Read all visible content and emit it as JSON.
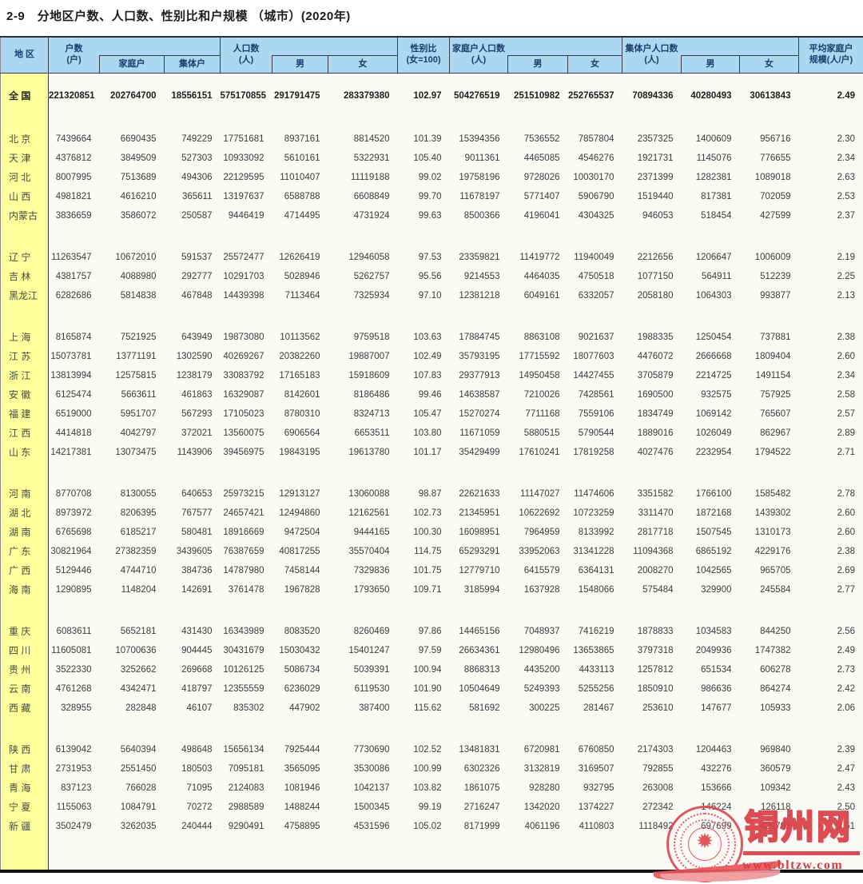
{
  "page_title": "2-9　分地区户数、人口数、性别比和户规模 （城市）(2020年)",
  "table": {
    "header": {
      "region": "地 区",
      "households": "户数\n(户)",
      "family_households": "家庭户",
      "collective_households": "集体户",
      "population": "人口数\n(人)",
      "male": "男",
      "female": "女",
      "sex_ratio": "性别比\n(女=100)",
      "family_hh_population": "家庭户人口数\n(人)",
      "collective_hh_population": "集体户人口数\n(人)",
      "avg_family_size": "平均家庭户\n规模(人/户)"
    },
    "value_columns": [
      "households",
      "family_households",
      "collective_households",
      "population",
      "population_male",
      "population_female",
      "sex_ratio",
      "family_hh_population",
      "family_hh_male",
      "family_hh_female",
      "collective_hh_population",
      "collective_hh_male",
      "collective_hh_female",
      "avg_family_size"
    ],
    "groups": [
      {
        "rows": [
          {
            "region": "全 国",
            "values": [
              "221320851",
              "202764700",
              "18556151",
              "575170855",
              "291791475",
              "283379380",
              "102.97",
              "504276519",
              "251510982",
              "252765537",
              "70894336",
              "40280493",
              "30613843",
              "2.49"
            ]
          }
        ]
      },
      {
        "rows": [
          {
            "region": "北 京",
            "values": [
              "7439664",
              "6690435",
              "749229",
              "17751681",
              "8937161",
              "8814520",
              "101.39",
              "15394356",
              "7536552",
              "7857804",
              "2357325",
              "1400609",
              "956716",
              "2.30"
            ]
          },
          {
            "region": "天 津",
            "values": [
              "4376812",
              "3849509",
              "527303",
              "10933092",
              "5610161",
              "5322931",
              "105.40",
              "9011361",
              "4465085",
              "4546276",
              "1921731",
              "1145076",
              "776655",
              "2.34"
            ]
          },
          {
            "region": "河 北",
            "values": [
              "8007995",
              "7513689",
              "494306",
              "22129595",
              "11010407",
              "11119188",
              "99.02",
              "19758196",
              "9728026",
              "10030170",
              "2371399",
              "1282381",
              "1089018",
              "2.63"
            ]
          },
          {
            "region": "山 西",
            "values": [
              "4981821",
              "4616210",
              "365611",
              "13197637",
              "6588788",
              "6608849",
              "99.70",
              "11678197",
              "5771407",
              "5906790",
              "1519440",
              "817381",
              "702059",
              "2.53"
            ]
          },
          {
            "region": "内蒙古",
            "values": [
              "3836659",
              "3586072",
              "250587",
              "9446419",
              "4714495",
              "4731924",
              "99.63",
              "8500366",
              "4196041",
              "4304325",
              "946053",
              "518454",
              "427599",
              "2.37"
            ]
          }
        ]
      },
      {
        "rows": [
          {
            "region": "辽 宁",
            "values": [
              "11263547",
              "10672010",
              "591537",
              "25572477",
              "12626419",
              "12946058",
              "97.53",
              "23359821",
              "11419772",
              "11940049",
              "2212656",
              "1206647",
              "1006009",
              "2.19"
            ]
          },
          {
            "region": "吉 林",
            "values": [
              "4381757",
              "4088980",
              "292777",
              "10291703",
              "5028946",
              "5262757",
              "95.56",
              "9214553",
              "4464035",
              "4750518",
              "1077150",
              "564911",
              "512239",
              "2.25"
            ]
          },
          {
            "region": "黑龙江",
            "values": [
              "6282686",
              "5814838",
              "467848",
              "14439398",
              "7113464",
              "7325934",
              "97.10",
              "12381218",
              "6049161",
              "6332057",
              "2058180",
              "1064303",
              "993877",
              "2.13"
            ]
          }
        ]
      },
      {
        "rows": [
          {
            "region": "上 海",
            "values": [
              "8165874",
              "7521925",
              "643949",
              "19873080",
              "10113562",
              "9759518",
              "103.63",
              "17884745",
              "8863108",
              "9021637",
              "1988335",
              "1250454",
              "737881",
              "2.38"
            ]
          },
          {
            "region": "江 苏",
            "values": [
              "15073781",
              "13771191",
              "1302590",
              "40269267",
              "20382260",
              "19887007",
              "102.49",
              "35793195",
              "17715592",
              "18077603",
              "4476072",
              "2666668",
              "1809404",
              "2.60"
            ]
          },
          {
            "region": "浙 江",
            "values": [
              "13813994",
              "12575815",
              "1238179",
              "33083792",
              "17165183",
              "15918609",
              "107.83",
              "29377913",
              "14950458",
              "14427455",
              "3705879",
              "2214725",
              "1491154",
              "2.34"
            ]
          },
          {
            "region": "安 徽",
            "values": [
              "6125474",
              "5663611",
              "461863",
              "16329087",
              "8142601",
              "8186486",
              "99.46",
              "14638587",
              "7210026",
              "7428561",
              "1690500",
              "932575",
              "757925",
              "2.58"
            ]
          },
          {
            "region": "福 建",
            "values": [
              "6519000",
              "5951707",
              "567293",
              "17105023",
              "8780310",
              "8324713",
              "105.47",
              "15270274",
              "7711168",
              "7559106",
              "1834749",
              "1069142",
              "765607",
              "2.57"
            ]
          },
          {
            "region": "江 西",
            "values": [
              "4414818",
              "4042797",
              "372021",
              "13560075",
              "6906564",
              "6653511",
              "103.80",
              "11671059",
              "5880515",
              "5790544",
              "1889016",
              "1026049",
              "862967",
              "2.89"
            ]
          },
          {
            "region": "山 东",
            "values": [
              "14217381",
              "13073475",
              "1143906",
              "39456975",
              "19843195",
              "19613780",
              "101.17",
              "35429499",
              "17610241",
              "17819258",
              "4027476",
              "2232954",
              "1794522",
              "2.71"
            ]
          }
        ]
      },
      {
        "rows": [
          {
            "region": "河 南",
            "values": [
              "8770708",
              "8130055",
              "640653",
              "25973215",
              "12913127",
              "13060088",
              "98.87",
              "22621633",
              "11147027",
              "11474606",
              "3351582",
              "1766100",
              "1585482",
              "2.78"
            ]
          },
          {
            "region": "湖 北",
            "values": [
              "8973972",
              "8206395",
              "767577",
              "24657421",
              "12494860",
              "12162561",
              "102.73",
              "21345951",
              "10622692",
              "10723259",
              "3311470",
              "1872168",
              "1439302",
              "2.60"
            ]
          },
          {
            "region": "湖 南",
            "values": [
              "6765698",
              "6185217",
              "580481",
              "18916669",
              "9472504",
              "9444165",
              "100.30",
              "16098951",
              "7964959",
              "8133992",
              "2817718",
              "1507545",
              "1310173",
              "2.60"
            ]
          },
          {
            "region": "广 东",
            "values": [
              "30821964",
              "27382359",
              "3439605",
              "76387659",
              "40817255",
              "35570404",
              "114.75",
              "65293291",
              "33952063",
              "31341228",
              "11094368",
              "6865192",
              "4229176",
              "2.38"
            ]
          },
          {
            "region": "广 西",
            "values": [
              "5129446",
              "4744710",
              "384736",
              "14787980",
              "7458144",
              "7329836",
              "101.75",
              "12779710",
              "6415579",
              "6364131",
              "2008270",
              "1042565",
              "965705",
              "2.69"
            ]
          },
          {
            "region": "海 南",
            "values": [
              "1290895",
              "1148204",
              "142691",
              "3761478",
              "1967828",
              "1793650",
              "109.71",
              "3185994",
              "1637928",
              "1548066",
              "575484",
              "329900",
              "245584",
              "2.77"
            ]
          }
        ]
      },
      {
        "rows": [
          {
            "region": "重 庆",
            "values": [
              "6083611",
              "5652181",
              "431430",
              "16343989",
              "8083520",
              "8260469",
              "97.86",
              "14465156",
              "7048937",
              "7416219",
              "1878833",
              "1034583",
              "844250",
              "2.56"
            ]
          },
          {
            "region": "四 川",
            "values": [
              "11605081",
              "10700636",
              "904445",
              "30431679",
              "15030432",
              "15401247",
              "97.59",
              "26634361",
              "12980496",
              "13653865",
              "3797318",
              "2049936",
              "1747382",
              "2.49"
            ]
          },
          {
            "region": "贵 州",
            "values": [
              "3522330",
              "3252662",
              "269668",
              "10126125",
              "5086734",
              "5039391",
              "100.94",
              "8868313",
              "4435200",
              "4433113",
              "1257812",
              "651534",
              "606278",
              "2.73"
            ]
          },
          {
            "region": "云 南",
            "values": [
              "4761268",
              "4342471",
              "418797",
              "12355559",
              "6236029",
              "6119530",
              "101.90",
              "10504649",
              "5249393",
              "5255256",
              "1850910",
              "986636",
              "864274",
              "2.42"
            ]
          },
          {
            "region": "西 藏",
            "values": [
              "328955",
              "282848",
              "46107",
              "835302",
              "447902",
              "387400",
              "115.62",
              "581692",
              "300225",
              "281467",
              "253610",
              "147677",
              "105933",
              "2.06"
            ]
          }
        ]
      },
      {
        "rows": [
          {
            "region": "陕 西",
            "values": [
              "6139042",
              "5640394",
              "498648",
              "15656134",
              "7925444",
              "7730690",
              "102.52",
              "13481831",
              "6720981",
              "6760850",
              "2174303",
              "1204463",
              "969840",
              "2.39"
            ]
          },
          {
            "region": "甘 肃",
            "values": [
              "2731953",
              "2551450",
              "180503",
              "7095181",
              "3565095",
              "3530086",
              "100.99",
              "6302326",
              "3132819",
              "3169507",
              "792855",
              "432276",
              "360579",
              "2.47"
            ]
          },
          {
            "region": "青 海",
            "values": [
              "837123",
              "766028",
              "71095",
              "2124083",
              "1081946",
              "1042137",
              "103.82",
              "1861075",
              "928280",
              "932795",
              "263008",
              "153666",
              "109342",
              "2.43"
            ]
          },
          {
            "region": "宁 夏",
            "values": [
              "1155063",
              "1084791",
              "70272",
              "2988589",
              "1488244",
              "1500345",
              "99.19",
              "2716247",
              "1342020",
              "1374227",
              "272342",
              "146224",
              "126118",
              "2.50"
            ]
          },
          {
            "region": "新 疆",
            "values": [
              "3502479",
              "3262035",
              "240444",
              "9290491",
              "4758895",
              "4531596",
              "105.02",
              "8171999",
              "4061196",
              "4110803",
              "1118492",
              "697699",
              "420793",
              "2.51"
            ]
          }
        ]
      }
    ]
  },
  "watermark": {
    "site_name": "铜州网",
    "url": "www.bltzw.com"
  },
  "colors": {
    "header_bg": "#a9d8f0",
    "header_text": "#1b3c6b",
    "region_col_bg": "#ffff9c",
    "watermark_red": "#d94046"
  }
}
